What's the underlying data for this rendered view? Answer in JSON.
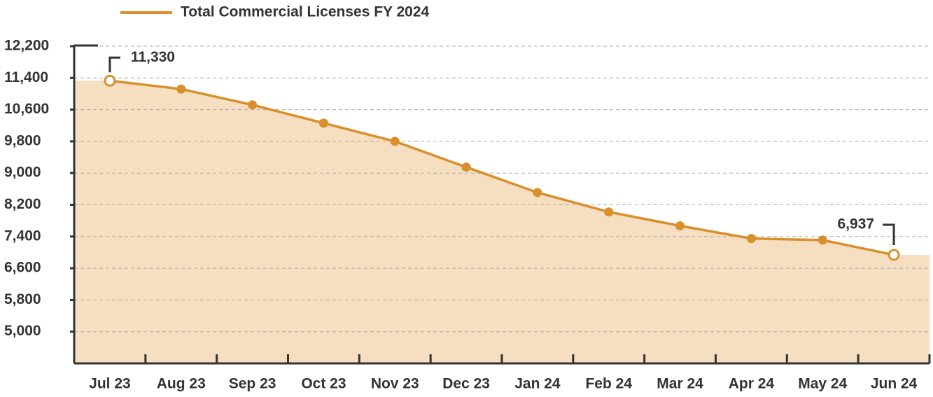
{
  "chart_data": {
    "type": "line",
    "categories": [
      "Jul 23",
      "Aug 23",
      "Sep 23",
      "Oct 23",
      "Nov 23",
      "Dec 23",
      "Jan 24",
      "Feb 24",
      "Mar 24",
      "Apr 24",
      "May 24",
      "Jun 24"
    ],
    "series": [
      {
        "name": "Total Commercial Licenses FY 2024",
        "color": "#d98f2b",
        "area_color": "#f5dfc0",
        "values": [
          11330,
          11120,
          10720,
          10260,
          9800,
          9150,
          8510,
          8020,
          7670,
          7350,
          7310,
          6937
        ],
        "value_labels": [
          "11,330",
          null,
          null,
          null,
          null,
          null,
          null,
          null,
          null,
          null,
          null,
          "6,937"
        ]
      }
    ],
    "ylim": [
      4200,
      12200
    ],
    "yticks": [
      {
        "value": 5000,
        "label": "5,000"
      },
      {
        "value": 5800,
        "label": "5,800"
      },
      {
        "value": 6600,
        "label": "6,600"
      },
      {
        "value": 7400,
        "label": "7,400"
      },
      {
        "value": 8200,
        "label": "8,200"
      },
      {
        "value": 9000,
        "label": "9,000"
      },
      {
        "value": 9800,
        "label": "9,800"
      },
      {
        "value": 10600,
        "label": "10,600"
      },
      {
        "value": 11400,
        "label": "11,400"
      },
      {
        "value": 12200,
        "label": "12,200"
      }
    ],
    "grid": true,
    "legend": "top"
  }
}
